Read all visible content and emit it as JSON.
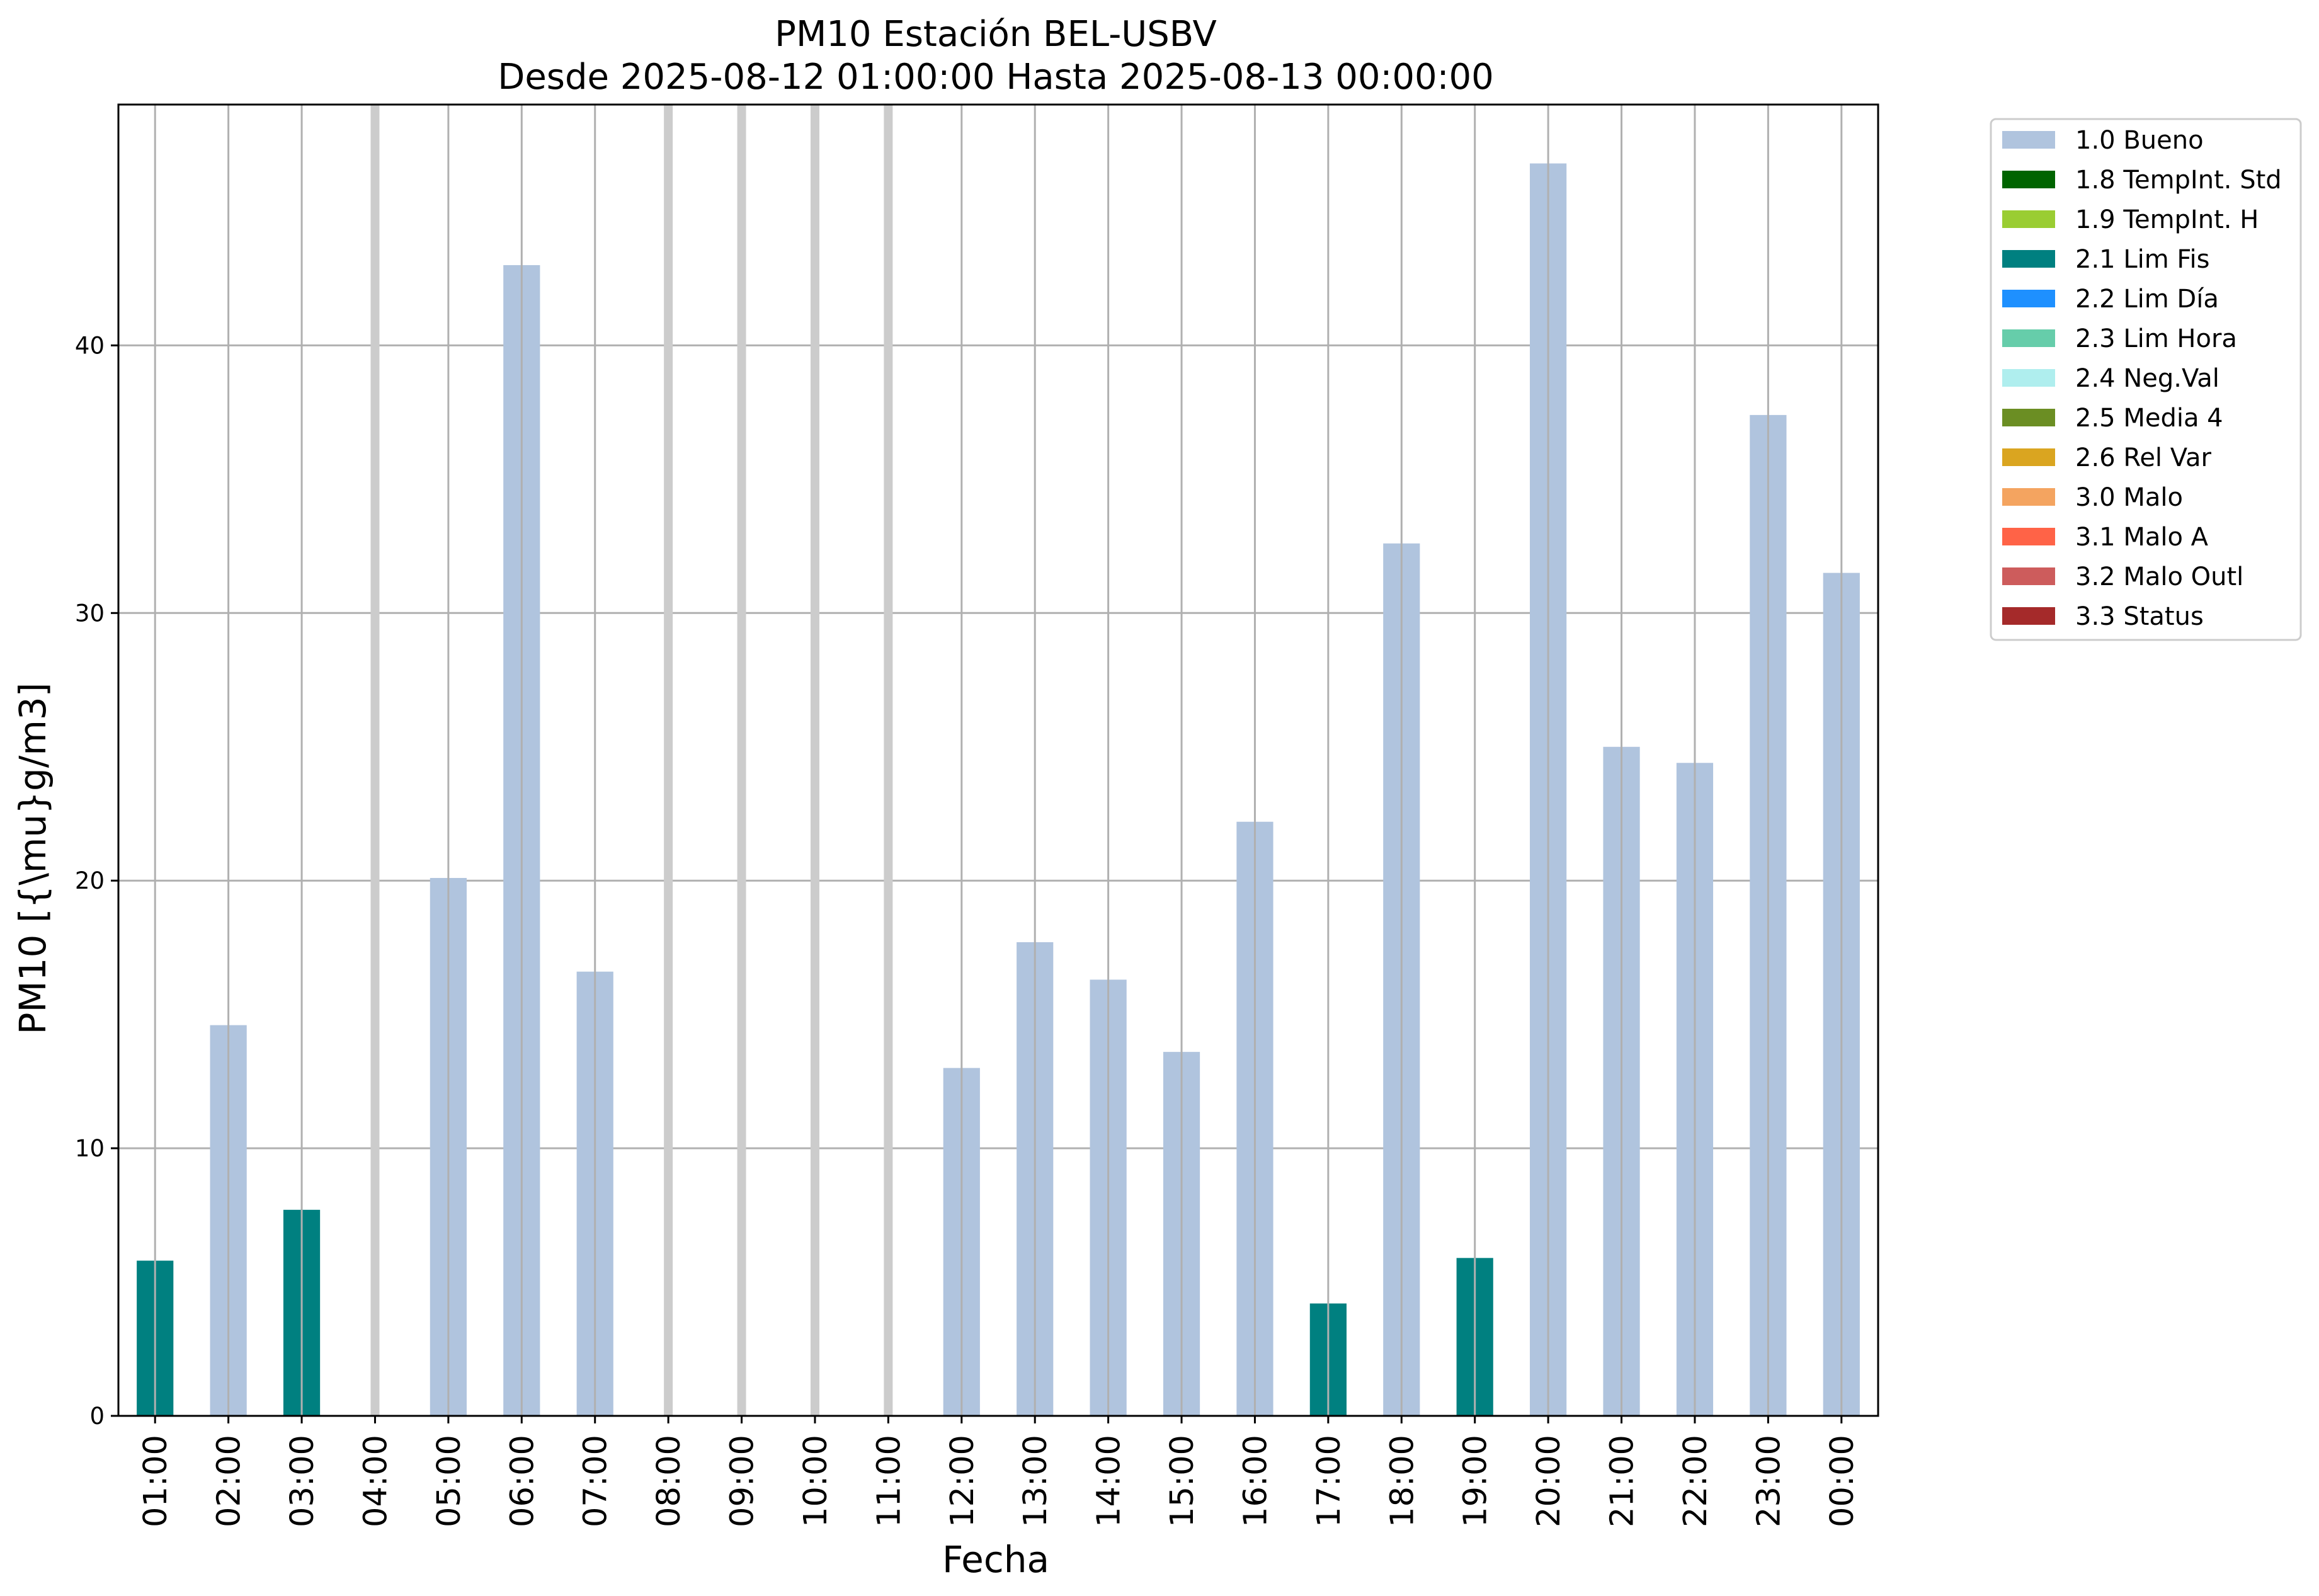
{
  "colors": {
    "grid": "#b0b0b0",
    "axis": "#000000",
    "background": "#ffffff",
    "missing_marker": "#cccccc"
  },
  "legend": {
    "placement": "outside-right-top",
    "items": [
      {
        "label": "1.0 Bueno",
        "color": "#b0c4de"
      },
      {
        "label": "1.8 TempInt. Std",
        "color": "#006400"
      },
      {
        "label": "1.9 TempInt. H",
        "color": "#9acd32"
      },
      {
        "label": "2.1 Lim Fis",
        "color": "#008080"
      },
      {
        "label": "2.2 Lim Día",
        "color": "#1e90ff"
      },
      {
        "label": "2.3 Lim Hora",
        "color": "#66cdaa"
      },
      {
        "label": "2.4 Neg.Val",
        "color": "#afeeee"
      },
      {
        "label": "2.5 Media 4",
        "color": "#6b8e23"
      },
      {
        "label": "2.6 Rel Var",
        "color": "#daa520"
      },
      {
        "label": "3.0 Malo",
        "color": "#f4a460"
      },
      {
        "label": "3.1 Malo A",
        "color": "#ff6347"
      },
      {
        "label": "3.2 Malo Outl",
        "color": "#cd5c5c"
      },
      {
        "label": "3.3 Status",
        "color": "#a52a2a"
      }
    ]
  },
  "chart_data": {
    "type": "bar",
    "title": "PM10 Estación BEL-USBV",
    "subtitle": "Desde 2025-08-12 01:00:00 Hasta 2025-08-13 00:00:00",
    "xlabel": "Fecha",
    "ylabel": "PM10 [{\\mu}g/m3]",
    "ylim": [
      0,
      49
    ],
    "yticks": [
      0,
      10,
      20,
      30,
      40
    ],
    "grid": true,
    "categories": [
      "01:00",
      "02:00",
      "03:00",
      "04:00",
      "05:00",
      "06:00",
      "07:00",
      "08:00",
      "09:00",
      "10:00",
      "11:00",
      "12:00",
      "13:00",
      "14:00",
      "15:00",
      "16:00",
      "17:00",
      "18:00",
      "19:00",
      "20:00",
      "21:00",
      "22:00",
      "23:00",
      "00:00"
    ],
    "values": [
      5.8,
      14.6,
      7.7,
      null,
      20.1,
      43.0,
      16.6,
      null,
      null,
      null,
      null,
      13.0,
      17.7,
      16.3,
      13.6,
      22.2,
      4.2,
      32.6,
      5.9,
      46.8,
      25.0,
      24.4,
      37.4,
      31.5
    ],
    "flags": [
      "2.1 Lim Fis",
      "1.0 Bueno",
      "2.1 Lim Fis",
      null,
      "1.0 Bueno",
      "1.0 Bueno",
      "1.0 Bueno",
      null,
      null,
      null,
      null,
      "1.0 Bueno",
      "1.0 Bueno",
      "1.0 Bueno",
      "1.0 Bueno",
      "1.0 Bueno",
      "2.1 Lim Fis",
      "1.0 Bueno",
      "2.1 Lim Fis",
      "1.0 Bueno",
      "1.0 Bueno",
      "1.0 Bueno",
      "1.0 Bueno",
      "1.0 Bueno"
    ]
  }
}
